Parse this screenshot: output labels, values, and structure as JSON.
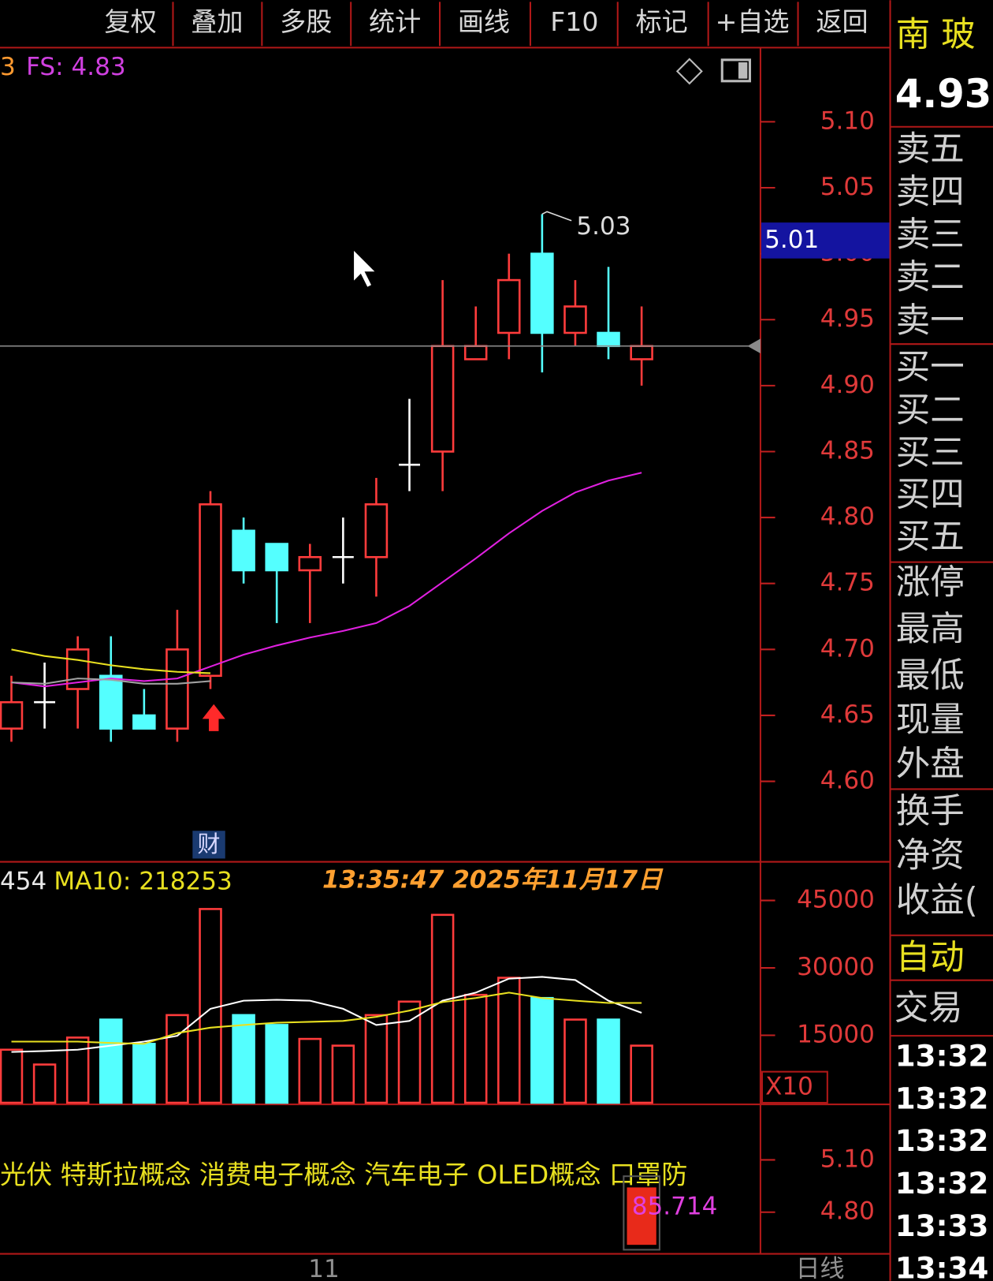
{
  "toolbar": {
    "buttons": [
      "复权",
      "叠加",
      "多股",
      "统计",
      "画线",
      "F10",
      "标记",
      "+自选",
      "返回"
    ]
  },
  "indicator": {
    "prefix": "3",
    "text": "FS: 4.83"
  },
  "chart_data": [
    {
      "type": "candlestick",
      "categories": [
        null,
        null,
        null,
        null,
        null,
        null,
        null,
        null,
        null,
        "11",
        null,
        null,
        null,
        null,
        null,
        null,
        null,
        null,
        null,
        null
      ],
      "open": [
        4.64,
        4.66,
        4.67,
        4.68,
        4.65,
        4.64,
        4.68,
        4.79,
        4.78,
        4.76,
        4.77,
        4.77,
        4.84,
        4.85,
        4.92,
        4.94,
        5.0,
        4.94,
        4.94,
        4.92
      ],
      "high": [
        4.68,
        4.69,
        4.71,
        4.71,
        4.67,
        4.73,
        4.82,
        4.8,
        4.78,
        4.78,
        4.8,
        4.83,
        4.89,
        4.98,
        4.96,
        5.0,
        5.03,
        4.98,
        4.99,
        4.96
      ],
      "low": [
        4.63,
        4.64,
        4.64,
        4.63,
        4.64,
        4.63,
        4.67,
        4.75,
        4.72,
        4.72,
        4.75,
        4.74,
        4.82,
        4.82,
        4.92,
        4.92,
        4.91,
        4.93,
        4.92,
        4.9
      ],
      "close": [
        4.66,
        4.66,
        4.7,
        4.64,
        4.64,
        4.7,
        4.81,
        4.76,
        4.76,
        4.77,
        4.77,
        4.81,
        4.84,
        4.93,
        4.93,
        4.98,
        4.94,
        4.96,
        4.93,
        4.93
      ],
      "up_color": "#ff3c3c",
      "down_color": "#54ffff",
      "flat_color": "#ffffff",
      "ma_lines": [
        {
          "color": "#e020e0",
          "values": [
            4.675,
            4.672,
            4.675,
            4.678,
            4.676,
            4.678,
            4.687,
            4.696,
            4.703,
            4.709,
            4.714,
            4.72,
            4.733,
            4.751,
            4.769,
            4.788,
            4.805,
            4.819,
            4.828,
            4.834
          ]
        },
        {
          "color": "#e8e020",
          "values": [
            4.7,
            4.695,
            4.692,
            4.688,
            4.685,
            4.683,
            4.682,
            null,
            null,
            null,
            null,
            null,
            null,
            null,
            null,
            null,
            null,
            null,
            null,
            null
          ]
        },
        {
          "color": "#a0a0a0",
          "values": [
            4.675,
            4.674,
            4.678,
            4.677,
            4.674,
            4.674,
            4.676,
            null,
            null,
            null,
            null,
            null,
            null,
            null,
            null,
            null,
            null,
            null,
            null,
            null
          ]
        }
      ],
      "high_label": 5.03,
      "cursor_price": 5.01,
      "ylim": [
        4.539,
        5.155
      ],
      "yticks": [
        {
          "value": 4.6,
          "label": "4.60"
        },
        4.65,
        {
          "value": 4.7,
          "label": "4.70"
        },
        4.75,
        {
          "value": 4.8,
          "label": "4.80"
        },
        4.85,
        {
          "value": 4.9,
          "label": "4.90"
        },
        4.95,
        {
          "value": 5.0,
          "label": "5.00"
        },
        5.05,
        {
          "value": 5.1,
          "label": "5.10"
        }
      ],
      "event_label": "财"
    },
    {
      "type": "bar",
      "values": [
        11800,
        8500,
        14500,
        18500,
        13100,
        19500,
        43100,
        19500,
        17300,
        14200,
        12700,
        19500,
        22500,
        41800,
        24000,
        27800,
        23300,
        18500,
        18500,
        12700
      ],
      "ma_lines": [
        {
          "color": "#ffffff",
          "values": [
            11300,
            11500,
            11800,
            12700,
            13600,
            14900,
            20900,
            22700,
            22900,
            22700,
            20900,
            17300,
            18200,
            22700,
            24500,
            27600,
            28000,
            27300,
            22700,
            20000
          ]
        },
        {
          "color": "#e8e020",
          "values": [
            13600,
            13600,
            13600,
            13300,
            13100,
            15500,
            16700,
            17300,
            17800,
            18000,
            18200,
            19100,
            20500,
            22400,
            23300,
            24500,
            23300,
            22700,
            22200,
            22200
          ]
        }
      ],
      "ylim": [
        0,
        53600
      ],
      "yticks": [
        15000,
        30000,
        45000
      ],
      "unit_label": "X10",
      "legend_prefix": "454",
      "legend_ma": "MA10: 218253",
      "timestamp": "13:35:47  2025年11月17日"
    }
  ],
  "bottom_panel": {
    "concepts": "光伏 特斯拉概念 消费电子概念 汽车电子 OLED概念 口罩防",
    "score": 85.714,
    "ticks": [
      {
        "value": 5.1,
        "label": "5.10"
      },
      {
        "value": 4.8,
        "label": "4.80"
      }
    ],
    "period": "日线"
  },
  "side_panel": {
    "name": "南 玻",
    "price": "4.93",
    "labels": [
      "卖五",
      "卖四",
      "卖三",
      "卖二",
      "卖一",
      "买一",
      "买二",
      "买三",
      "买四",
      "买五",
      "涨停",
      "最高",
      "最低",
      "现量",
      "外盘",
      "换手",
      "净资",
      "收益("
    ],
    "auto": "自动",
    "trade": "交易",
    "times": [
      "13:32",
      "13:32",
      "13:32",
      "13:32",
      "13:33",
      "13:34"
    ]
  }
}
